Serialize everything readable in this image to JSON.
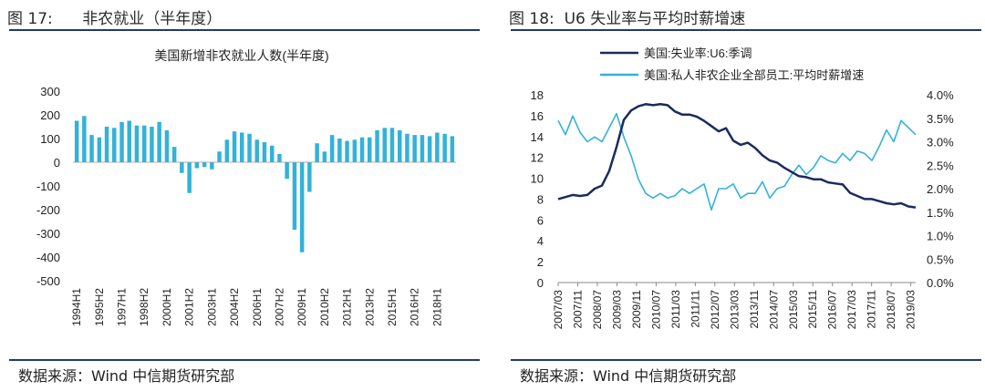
{
  "left": {
    "fig_label": "图 17:",
    "fig_name": "非农就业（半年度）",
    "source": "数据来源：Wind 中信期货研究部"
  },
  "right": {
    "fig_label": "图 18:",
    "fig_name": "U6 失业率与平均时薪增速",
    "source": "数据来源：Wind 中信期货研究部"
  },
  "chart_data": [
    {
      "type": "bar",
      "title": "美国新增非农就业人数(半年度)",
      "ylim": [
        -500,
        300
      ],
      "yticks": [
        300,
        200,
        100,
        0,
        -100,
        -200,
        -300,
        -400,
        -500
      ],
      "bar_color": "#33b2d9",
      "categories": [
        "1994H1",
        "1994H2",
        "1995H1",
        "1995H2",
        "1996H1",
        "1996H2",
        "1997H1",
        "1997H2",
        "1998H1",
        "1998H2",
        "1999H1",
        "1999H2",
        "2000H1",
        "2000H2",
        "2001H1",
        "2001H2",
        "2002H1",
        "2002H2",
        "2003H1",
        "2003H2",
        "2004H1",
        "2004H2",
        "2005H1",
        "2005H2",
        "2006H1",
        "2006H2",
        "2007H1",
        "2007H2",
        "2008H1",
        "2008H2",
        "2009H1",
        "2009H2",
        "2010H1",
        "2010H2",
        "2011H1",
        "2011H2",
        "2012H1",
        "2012H2",
        "2013H1",
        "2013H2",
        "2014H1",
        "2014H2",
        "2015H1",
        "2015H2",
        "2016H1",
        "2016H2",
        "2017H1",
        "2017H2",
        "2018H1",
        "2018H2",
        "2019H1"
      ],
      "values": [
        175,
        195,
        115,
        105,
        150,
        145,
        170,
        175,
        155,
        155,
        150,
        170,
        135,
        65,
        -45,
        -130,
        -25,
        -20,
        -30,
        45,
        95,
        130,
        125,
        120,
        95,
        85,
        70,
        35,
        -70,
        -285,
        -380,
        -125,
        80,
        45,
        115,
        100,
        90,
        95,
        105,
        105,
        135,
        145,
        145,
        135,
        120,
        115,
        115,
        110,
        125,
        120,
        110
      ],
      "xtick_labels": [
        "1994H1",
        "1995H2",
        "1997H1",
        "1998H2",
        "2000H1",
        "2001H2",
        "2003H1",
        "2004H2",
        "2006H1",
        "2007H2",
        "2009H1",
        "2010H2",
        "2012H1",
        "2013H2",
        "2015H1",
        "2016H2",
        "2018H1"
      ]
    },
    {
      "type": "line",
      "x_start": "2007/03",
      "x_end": "2019/05",
      "xtick_labels": [
        "2007/03",
        "2007/11",
        "2008/07",
        "2009/03",
        "2009/11",
        "2010/07",
        "2011/03",
        "2011/11",
        "2012/07",
        "2013/03",
        "2013/11",
        "2014/07",
        "2015/03",
        "2015/11",
        "2016/07",
        "2017/03",
        "2017/11",
        "2018/07",
        "2019/03"
      ],
      "y_left": {
        "range": [
          0,
          18
        ],
        "ticks": [
          0,
          2,
          4,
          6,
          8,
          10,
          12,
          14,
          16,
          18
        ]
      },
      "y_right": {
        "range": [
          0,
          4.0
        ],
        "ticks": [
          "0.0%",
          "0.5%",
          "1.0%",
          "1.5%",
          "2.0%",
          "2.5%",
          "3.0%",
          "3.5%",
          "4.0%"
        ]
      },
      "legend_position": "top-left",
      "series": [
        {
          "name": "美国:失业率:U6:季调",
          "axis": "left",
          "color": "#1a2b5f",
          "values": [
            8.0,
            8.2,
            8.4,
            8.3,
            8.4,
            9.0,
            9.3,
            10.7,
            13.0,
            15.6,
            16.5,
            16.9,
            17.1,
            17.0,
            17.1,
            17.0,
            16.4,
            16.1,
            16.1,
            15.9,
            15.5,
            15.0,
            14.5,
            14.8,
            13.6,
            13.2,
            13.4,
            12.9,
            12.2,
            11.7,
            11.5,
            11.0,
            10.6,
            10.2,
            10.1,
            9.9,
            9.9,
            9.6,
            9.5,
            9.4,
            8.6,
            8.3,
            8.0,
            8.0,
            7.8,
            7.6,
            7.5,
            7.6,
            7.3,
            7.2
          ]
        },
        {
          "name": "美国:私人非农企业全部员工:平均时薪增速",
          "axis": "right",
          "color": "#33b2d9",
          "values": [
            3.45,
            3.15,
            3.55,
            3.2,
            3.0,
            3.1,
            3.0,
            3.3,
            3.6,
            3.1,
            2.7,
            2.2,
            1.9,
            1.8,
            1.9,
            1.8,
            1.85,
            2.0,
            1.9,
            2.0,
            2.1,
            1.55,
            2.0,
            2.0,
            2.1,
            1.8,
            1.9,
            1.9,
            2.15,
            1.8,
            2.0,
            2.05,
            2.3,
            2.5,
            2.3,
            2.45,
            2.7,
            2.6,
            2.55,
            2.75,
            2.6,
            2.8,
            2.75,
            2.6,
            2.9,
            3.25,
            3.0,
            3.45,
            3.3,
            3.15
          ]
        }
      ]
    }
  ]
}
